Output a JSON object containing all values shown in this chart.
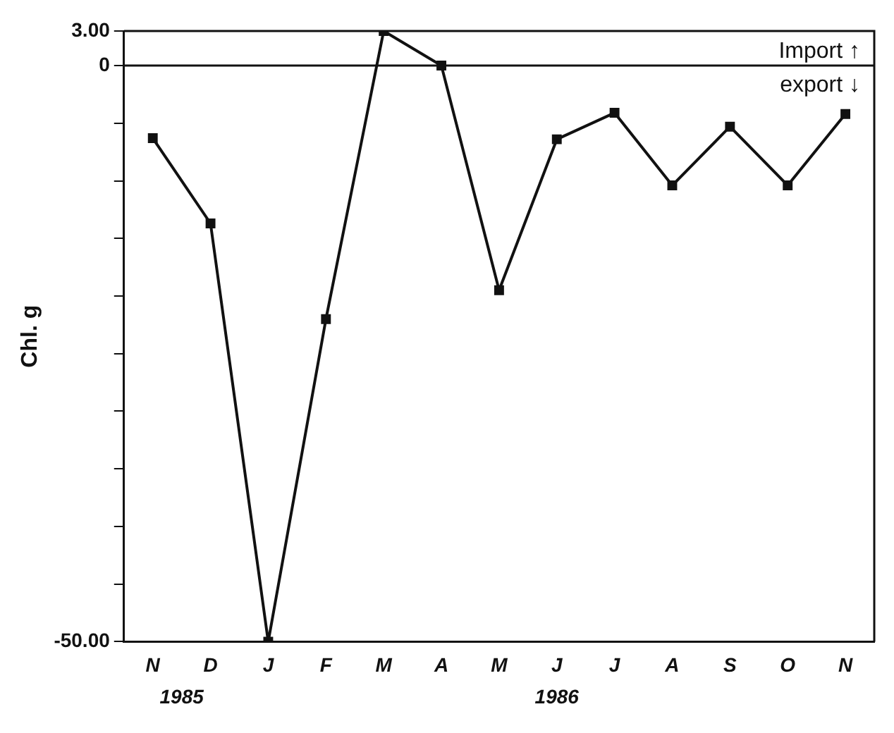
{
  "chart_data": {
    "type": "line",
    "ylabel": "Chl. g",
    "categories": [
      "N",
      "D",
      "J",
      "F",
      "M",
      "A",
      "M",
      "J",
      "J",
      "A",
      "S",
      "O",
      "N"
    ],
    "series": [
      {
        "color": "#111111",
        "values": [
          -6.3,
          -13.7,
          -50,
          -22,
          3,
          0,
          -19.5,
          -6.4,
          -4.1,
          -10.4,
          -5.3,
          -10.4,
          -4.2
        ]
      }
    ],
    "ylim": [
      -50,
      3
    ],
    "yticks": [
      {
        "value": 3,
        "label": "3.00"
      },
      0,
      {
        "value": -5,
        "label": null
      },
      {
        "value": -10,
        "label": null
      },
      {
        "value": -15,
        "label": null
      },
      {
        "value": -20,
        "label": null
      },
      {
        "value": -25,
        "label": null
      },
      {
        "value": -30,
        "label": null
      },
      {
        "value": -35,
        "label": null
      },
      {
        "value": -40,
        "label": null
      },
      {
        "value": -45,
        "label": null
      },
      {
        "value": -50,
        "label": "-50.00"
      }
    ],
    "ref_lines": [
      {
        "axis": "y",
        "value": 0,
        "label": null
      }
    ],
    "annotations": [
      "Import ↑",
      "export ↓",
      "1985",
      "1986"
    ],
    "grid": false,
    "legend": false,
    "marker": "square",
    "line_style": "solid"
  }
}
